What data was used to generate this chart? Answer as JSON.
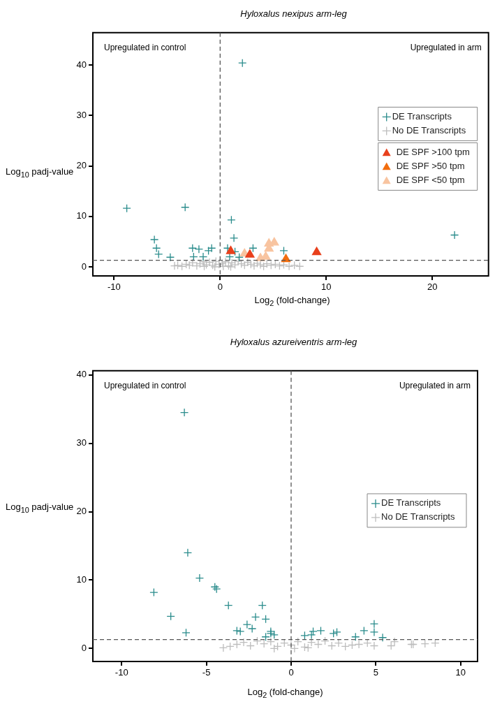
{
  "chart_data": [
    {
      "type": "scatter",
      "title": "Hyloxalus nexipus arm-leg",
      "xlabel": "Log$_{2}$ (fold-change)",
      "ylabel": "Log$_{10}$ padj-value",
      "xlim": [
        -12,
        25.3
      ],
      "ylim": [
        -1.8,
        46.4
      ],
      "xticks": [
        -10,
        0,
        10,
        20
      ],
      "yticks": [
        0,
        10,
        20,
        30,
        40
      ],
      "legend": "right",
      "annotations": [
        "Upregulated in control",
        "Upregulated in arm"
      ],
      "ref_lines": [
        {
          "axis": "x",
          "value": 0,
          "color": "#555555",
          "line_style": "dashed"
        },
        {
          "axis": "y",
          "value": 1.3,
          "color": "#555555",
          "line_style": "dashed"
        }
      ],
      "series": [
        {
          "name": "DE Transcripts",
          "color": "#2a8c8c",
          "marker": "cross",
          "x": [
            2.1,
            -8.8,
            -3.3,
            1.06,
            -6.2,
            -6.0,
            -5.8,
            -4.7,
            -2.6,
            -2.0,
            -0.8,
            -1.1,
            -1.6,
            -2.5,
            1.3,
            0.7,
            1.0,
            1.4,
            1.8,
            3.1,
            6.0,
            0.9,
            22.1
          ],
          "values": [
            40.4,
            11.6,
            11.8,
            9.3,
            5.4,
            3.7,
            2.5,
            1.9,
            3.7,
            3.5,
            3.7,
            3.2,
            2.0,
            2.0,
            5.7,
            3.7,
            null,
            3.0,
            1.9,
            3.7,
            3.2,
            2.0,
            6.3
          ]
        },
        {
          "name": "No DE Transcripts",
          "color": "#bdbdbd",
          "marker": "cross",
          "x": [
            -4.3,
            -4.0,
            -3.6,
            -3.2,
            -2.9,
            -2.6,
            -2.2,
            -1.9,
            -1.6,
            -1.3,
            -1.0,
            -0.7,
            -0.4,
            -0.1,
            0.2,
            0.5,
            0.8,
            1.1,
            1.4,
            1.7,
            2.0,
            2.3,
            2.6,
            2.9,
            3.2,
            3.5,
            3.8,
            4.1,
            4.4,
            4.8,
            5.2,
            5.6,
            6.0,
            6.5,
            7.0,
            7.5,
            -0.5,
            0.3,
            1.0,
            -1.5
          ],
          "values": [
            0.2,
            0.3,
            0.1,
            0.5,
            0.3,
            0.8,
            0.2,
            0.6,
            1.0,
            0.4,
            0.9,
            0.3,
            1.1,
            0.5,
            0.7,
            1.0,
            0.2,
            0.8,
            0.4,
            1.1,
            0.6,
            0.3,
            0.9,
            0.5,
            0.2,
            0.7,
            0.4,
            0.1,
            0.6,
            0.3,
            0.5,
            0.2,
            0.4,
            0.1,
            0.3,
            0.1,
            0.0,
            0.1,
            0.0,
            0.1
          ]
        },
        {
          "name": "DE SPF >100 tpm",
          "color": "#e8401c",
          "marker": "triangle",
          "x": [
            1.0,
            2.8,
            9.1
          ],
          "values": [
            3.1,
            2.4,
            2.9
          ]
        },
        {
          "name": "DE SPF >50 tpm",
          "color": "#f26d0e",
          "marker": "triangle",
          "x": [
            6.2
          ],
          "values": [
            1.5
          ]
        },
        {
          "name": "DE SPF <50 tpm",
          "color": "#f8c4a0",
          "marker": "triangle",
          "x": [
            4.6,
            5.1,
            4.6,
            2.3,
            3.8,
            4.3
          ],
          "values": [
            4.6,
            4.8,
            3.6,
            2.6,
            1.7,
            2.0
          ]
        }
      ]
    },
    {
      "type": "scatter",
      "title": "Hyloxalus azureiventris arm-leg",
      "xlabel": "Log$_{2}$ (fold-change)",
      "ylabel": "Log$_{10}$ padj-value",
      "xlim": [
        -11.7,
        11.0
      ],
      "ylim": [
        -1.9,
        40.6
      ],
      "xticks": [
        -10,
        -5,
        0,
        5,
        10
      ],
      "yticks": [
        0,
        10,
        20,
        30,
        40
      ],
      "legend": "right",
      "annotations": [
        "Upregulated in control",
        "Upregulated in arm"
      ],
      "ref_lines": [
        {
          "axis": "x",
          "value": 0,
          "color": "#555555",
          "line_style": "dashed"
        },
        {
          "axis": "y",
          "value": 1.3,
          "color": "#555555",
          "line_style": "dashed"
        }
      ],
      "series": [
        {
          "name": "DE Transcripts",
          "color": "#2a8c8c",
          "marker": "cross",
          "x": [
            -6.3,
            -6.1,
            -5.4,
            -4.5,
            -4.4,
            -8.1,
            -3.7,
            -1.7,
            -7.1,
            -2.1,
            -1.5,
            -6.2,
            -2.6,
            -3.2,
            -3.0,
            -2.3,
            -1.2,
            -1.2,
            -1.5,
            -1.0,
            0.8,
            1.3,
            1.75,
            2.5,
            2.7,
            3.8,
            4.3,
            4.9,
            4.9,
            5.4,
            1.2
          ],
          "values": [
            34.5,
            14.0,
            10.3,
            9.0,
            8.7,
            8.2,
            6.3,
            6.3,
            4.7,
            4.6,
            4.3,
            2.3,
            3.5,
            2.6,
            2.5,
            2.9,
            2.5,
            2.2,
            1.7,
            2.0,
            1.9,
            2.5,
            2.6,
            2.2,
            2.4,
            1.7,
            2.6,
            3.6,
            2.4,
            1.6,
            2.0
          ]
        },
        {
          "name": "No DE Transcripts",
          "color": "#bdbdbd",
          "marker": "cross",
          "x": [
            -4.0,
            -3.6,
            -3.2,
            -2.8,
            -2.4,
            -2.0,
            -1.6,
            -1.2,
            -0.8,
            -0.4,
            0.0,
            0.4,
            0.8,
            1.2,
            1.6,
            2.0,
            2.4,
            2.8,
            3.2,
            3.6,
            4.0,
            4.5,
            4.9,
            5.9,
            6.1,
            7.1,
            7.2,
            7.9,
            8.5,
            -1.0,
            0.2,
            1.0
          ],
          "values": [
            0.1,
            0.3,
            0.6,
            0.9,
            0.4,
            1.1,
            0.7,
            1.0,
            0.3,
            0.8,
            0.5,
            1.0,
            0.2,
            0.9,
            0.6,
            1.1,
            0.4,
            0.8,
            0.3,
            0.5,
            0.6,
            0.8,
            0.4,
            0.4,
            1.0,
            0.6,
            0.6,
            0.7,
            0.8,
            0.0,
            0.0,
            0.1
          ]
        }
      ]
    }
  ]
}
